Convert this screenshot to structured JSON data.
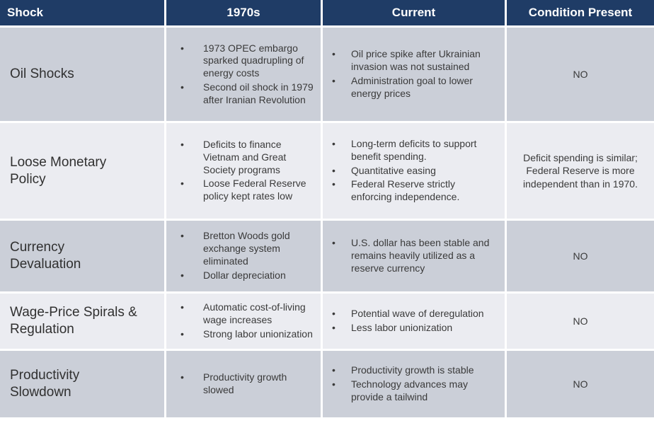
{
  "table": {
    "headers": [
      {
        "id": "shock",
        "label": "Shock"
      },
      {
        "id": "seventies",
        "label": "1970s"
      },
      {
        "id": "current",
        "label": "Current"
      },
      {
        "id": "condition",
        "label": "Condition Present"
      }
    ],
    "rows": [
      {
        "shock": "Oil Shocks",
        "seventies": [
          "1973 OPEC embargo sparked quadrupling of energy costs",
          "Second oil shock in 1979 after Iranian Revolution"
        ],
        "current": [
          "Oil price spike after Ukrainian invasion was not sustained",
          "Administration goal to lower energy prices"
        ],
        "condition": "NO"
      },
      {
        "shock": "Loose Monetary\nPolicy",
        "seventies": [
          "Deficits to finance Vietnam and Great Society programs",
          "Loose Federal Reserve policy kept rates low"
        ],
        "current": [
          "Long-term deficits to support benefit spending.",
          "Quantitative easing",
          "Federal Reserve strictly enforcing independence."
        ],
        "condition": "Deficit spending is similar; Federal Reserve is more independent than in 1970."
      },
      {
        "shock": "Currency\nDevaluation",
        "seventies": [
          "Bretton Woods gold exchange system eliminated",
          "Dollar depreciation"
        ],
        "current": [
          "U.S. dollar has been stable and remains heavily utilized as a reserve currency"
        ],
        "condition": "NO"
      },
      {
        "shock": "Wage-Price Spirals &\nRegulation",
        "seventies": [
          "Automatic cost-of-living wage increases",
          "Strong labor unionization"
        ],
        "current": [
          "Potential wave of deregulation",
          "Less labor unionization"
        ],
        "condition": "NO"
      },
      {
        "shock": "Productivity\nSlowdown",
        "seventies": [
          "Productivity growth slowed"
        ],
        "current": [
          "Productivity growth is stable",
          "Technology advances may provide a tailwind"
        ],
        "condition": "NO"
      }
    ]
  },
  "colors": {
    "header_background": "#1F3C66",
    "header_text": "#FFFFFF",
    "row_shaded": "#CBCFD8",
    "row_light": "#EBECF1",
    "body_text": "#3A3A3A"
  }
}
